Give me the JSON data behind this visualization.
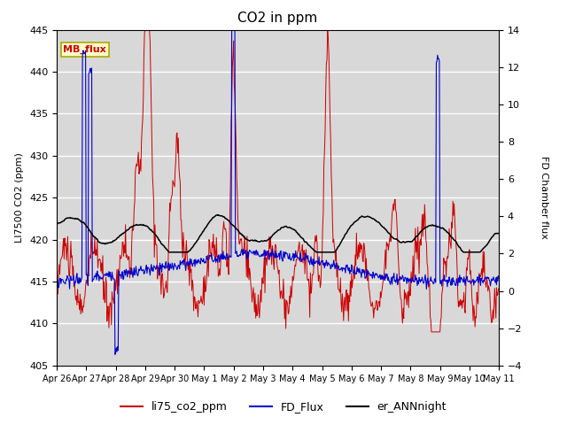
{
  "title": "CO2 in ppm",
  "ylabel_left": "LI7500 CO2 (ppm)",
  "ylabel_right": "FD Chamber flux",
  "ylim_left": [
    405,
    445
  ],
  "ylim_right": [
    -4,
    14
  ],
  "yticks_left": [
    405,
    410,
    415,
    420,
    425,
    430,
    435,
    440,
    445
  ],
  "yticks_right": [
    -4,
    -2,
    0,
    2,
    4,
    6,
    8,
    10,
    12,
    14
  ],
  "xticklabels": [
    "Apr 26",
    "Apr 27",
    "Apr 28",
    "Apr 29",
    "Apr 30",
    "May 1",
    "May 2",
    "May 3",
    "May 4",
    "May 5",
    "May 6",
    "May 7",
    "May 8",
    "May 9",
    "May 10",
    "May 11"
  ],
  "color_red": "#cc0000",
  "color_blue": "#0000cc",
  "color_black": "#000000",
  "bg_color": "#d8d8d8",
  "legend_labels": [
    "li75_co2_ppm",
    "FD_Flux",
    "er_ANNnight"
  ],
  "mb_flux_label": "MB_flux",
  "mb_flux_bg": "#ffffcc",
  "mb_flux_border": "#aaaa00",
  "mb_flux_text_color": "#cc0000",
  "title_fontsize": 11,
  "axis_fontsize": 8,
  "legend_fontsize": 9,
  "n_points": 720,
  "seed": 42
}
